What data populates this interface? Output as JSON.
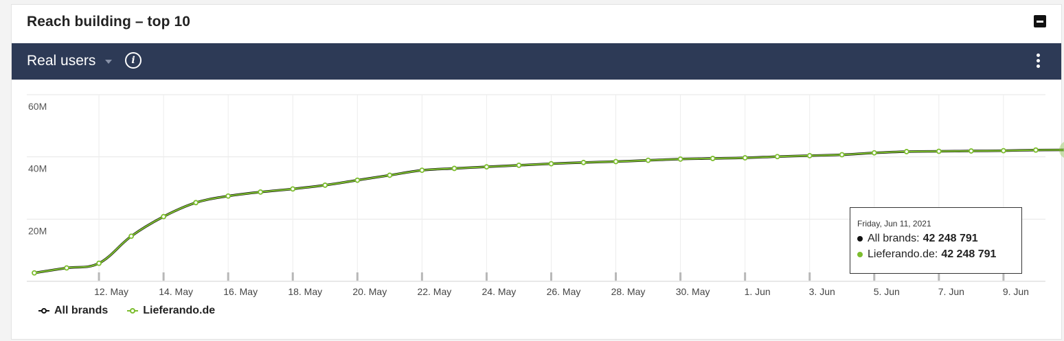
{
  "card": {
    "title": "Reach building – top 10"
  },
  "toolbar": {
    "metric_label": "Real users",
    "info_glyph": "i",
    "menu_icon": "kebab-vertical-icon"
  },
  "colors": {
    "toolbar_bg": "#2d3a56",
    "all_brands": "#111111",
    "lieferando": "#7cbd2e"
  },
  "tooltip": {
    "date": "Friday, Jun 11, 2021",
    "rows": [
      {
        "label": "All brands:",
        "value": "42 248 791"
      },
      {
        "label": "Lieferando.de:",
        "value": "42 248 791"
      }
    ]
  },
  "legend": [
    {
      "label": "All brands"
    },
    {
      "label": "Lieferando.de"
    }
  ],
  "chart_data": {
    "type": "line",
    "title": "",
    "xlabel": "",
    "ylabel": "",
    "ylim": [
      0,
      60000000
    ],
    "y_ticks": [
      {
        "value": 60000000,
        "label": "60M"
      },
      {
        "value": 40000000,
        "label": "40M"
      },
      {
        "value": 20000000,
        "label": "20M"
      }
    ],
    "x_start": "2021-05-11",
    "x_ticks": [
      {
        "date": "2021-05-12",
        "label": "12. May"
      },
      {
        "date": "2021-05-14",
        "label": "14. May"
      },
      {
        "date": "2021-05-16",
        "label": "16. May"
      },
      {
        "date": "2021-05-18",
        "label": "18. May"
      },
      {
        "date": "2021-05-20",
        "label": "20. May"
      },
      {
        "date": "2021-05-22",
        "label": "22. May"
      },
      {
        "date": "2021-05-24",
        "label": "24. May"
      },
      {
        "date": "2021-05-26",
        "label": "26. May"
      },
      {
        "date": "2021-05-28",
        "label": "28. May"
      },
      {
        "date": "2021-05-30",
        "label": "30. May"
      },
      {
        "date": "2021-06-01",
        "label": "1. Jun"
      },
      {
        "date": "2021-06-03",
        "label": "3. Jun"
      },
      {
        "date": "2021-06-05",
        "label": "5. Jun"
      },
      {
        "date": "2021-06-07",
        "label": "7. Jun"
      },
      {
        "date": "2021-06-09",
        "label": "9. Jun"
      }
    ],
    "grid": true,
    "legend_position": "bottom-left",
    "series": [
      {
        "name": "All brands",
        "dates": [
          "2021-05-10",
          "2021-05-11",
          "2021-05-12",
          "2021-05-13",
          "2021-05-14",
          "2021-05-15",
          "2021-05-16",
          "2021-05-17",
          "2021-05-18",
          "2021-05-19",
          "2021-05-20",
          "2021-05-21",
          "2021-05-22",
          "2021-05-23",
          "2021-05-24",
          "2021-05-25",
          "2021-05-26",
          "2021-05-27",
          "2021-05-28",
          "2021-05-29",
          "2021-05-30",
          "2021-05-31",
          "2021-06-01",
          "2021-06-02",
          "2021-06-03",
          "2021-06-04",
          "2021-06-05",
          "2021-06-06",
          "2021-06-07",
          "2021-06-08",
          "2021-06-09",
          "2021-06-10",
          "2021-06-11"
        ],
        "values": [
          2700000,
          4300000,
          5800000,
          14500000,
          20800000,
          25300000,
          27400000,
          28700000,
          29700000,
          30900000,
          32500000,
          34100000,
          35700000,
          36300000,
          36800000,
          37300000,
          37800000,
          38200000,
          38500000,
          38900000,
          39300000,
          39500000,
          39700000,
          40100000,
          40400000,
          40700000,
          41300000,
          41700000,
          41800000,
          41900000,
          42000000,
          42200000,
          42248791
        ]
      },
      {
        "name": "Lieferando.de",
        "dates": [
          "2021-05-10",
          "2021-05-11",
          "2021-05-12",
          "2021-05-13",
          "2021-05-14",
          "2021-05-15",
          "2021-05-16",
          "2021-05-17",
          "2021-05-18",
          "2021-05-19",
          "2021-05-20",
          "2021-05-21",
          "2021-05-22",
          "2021-05-23",
          "2021-05-24",
          "2021-05-25",
          "2021-05-26",
          "2021-05-27",
          "2021-05-28",
          "2021-05-29",
          "2021-05-30",
          "2021-05-31",
          "2021-06-01",
          "2021-06-02",
          "2021-06-03",
          "2021-06-04",
          "2021-06-05",
          "2021-06-06",
          "2021-06-07",
          "2021-06-08",
          "2021-06-09",
          "2021-06-10",
          "2021-06-11"
        ],
        "values": [
          2700000,
          4300000,
          5800000,
          14500000,
          20800000,
          25300000,
          27400000,
          28700000,
          29700000,
          30900000,
          32500000,
          34100000,
          35700000,
          36300000,
          36800000,
          37300000,
          37800000,
          38200000,
          38500000,
          38900000,
          39300000,
          39500000,
          39700000,
          40100000,
          40400000,
          40700000,
          41300000,
          41700000,
          41800000,
          41900000,
          42000000,
          42200000,
          42248791
        ]
      }
    ],
    "highlight_date": "2021-06-11"
  }
}
